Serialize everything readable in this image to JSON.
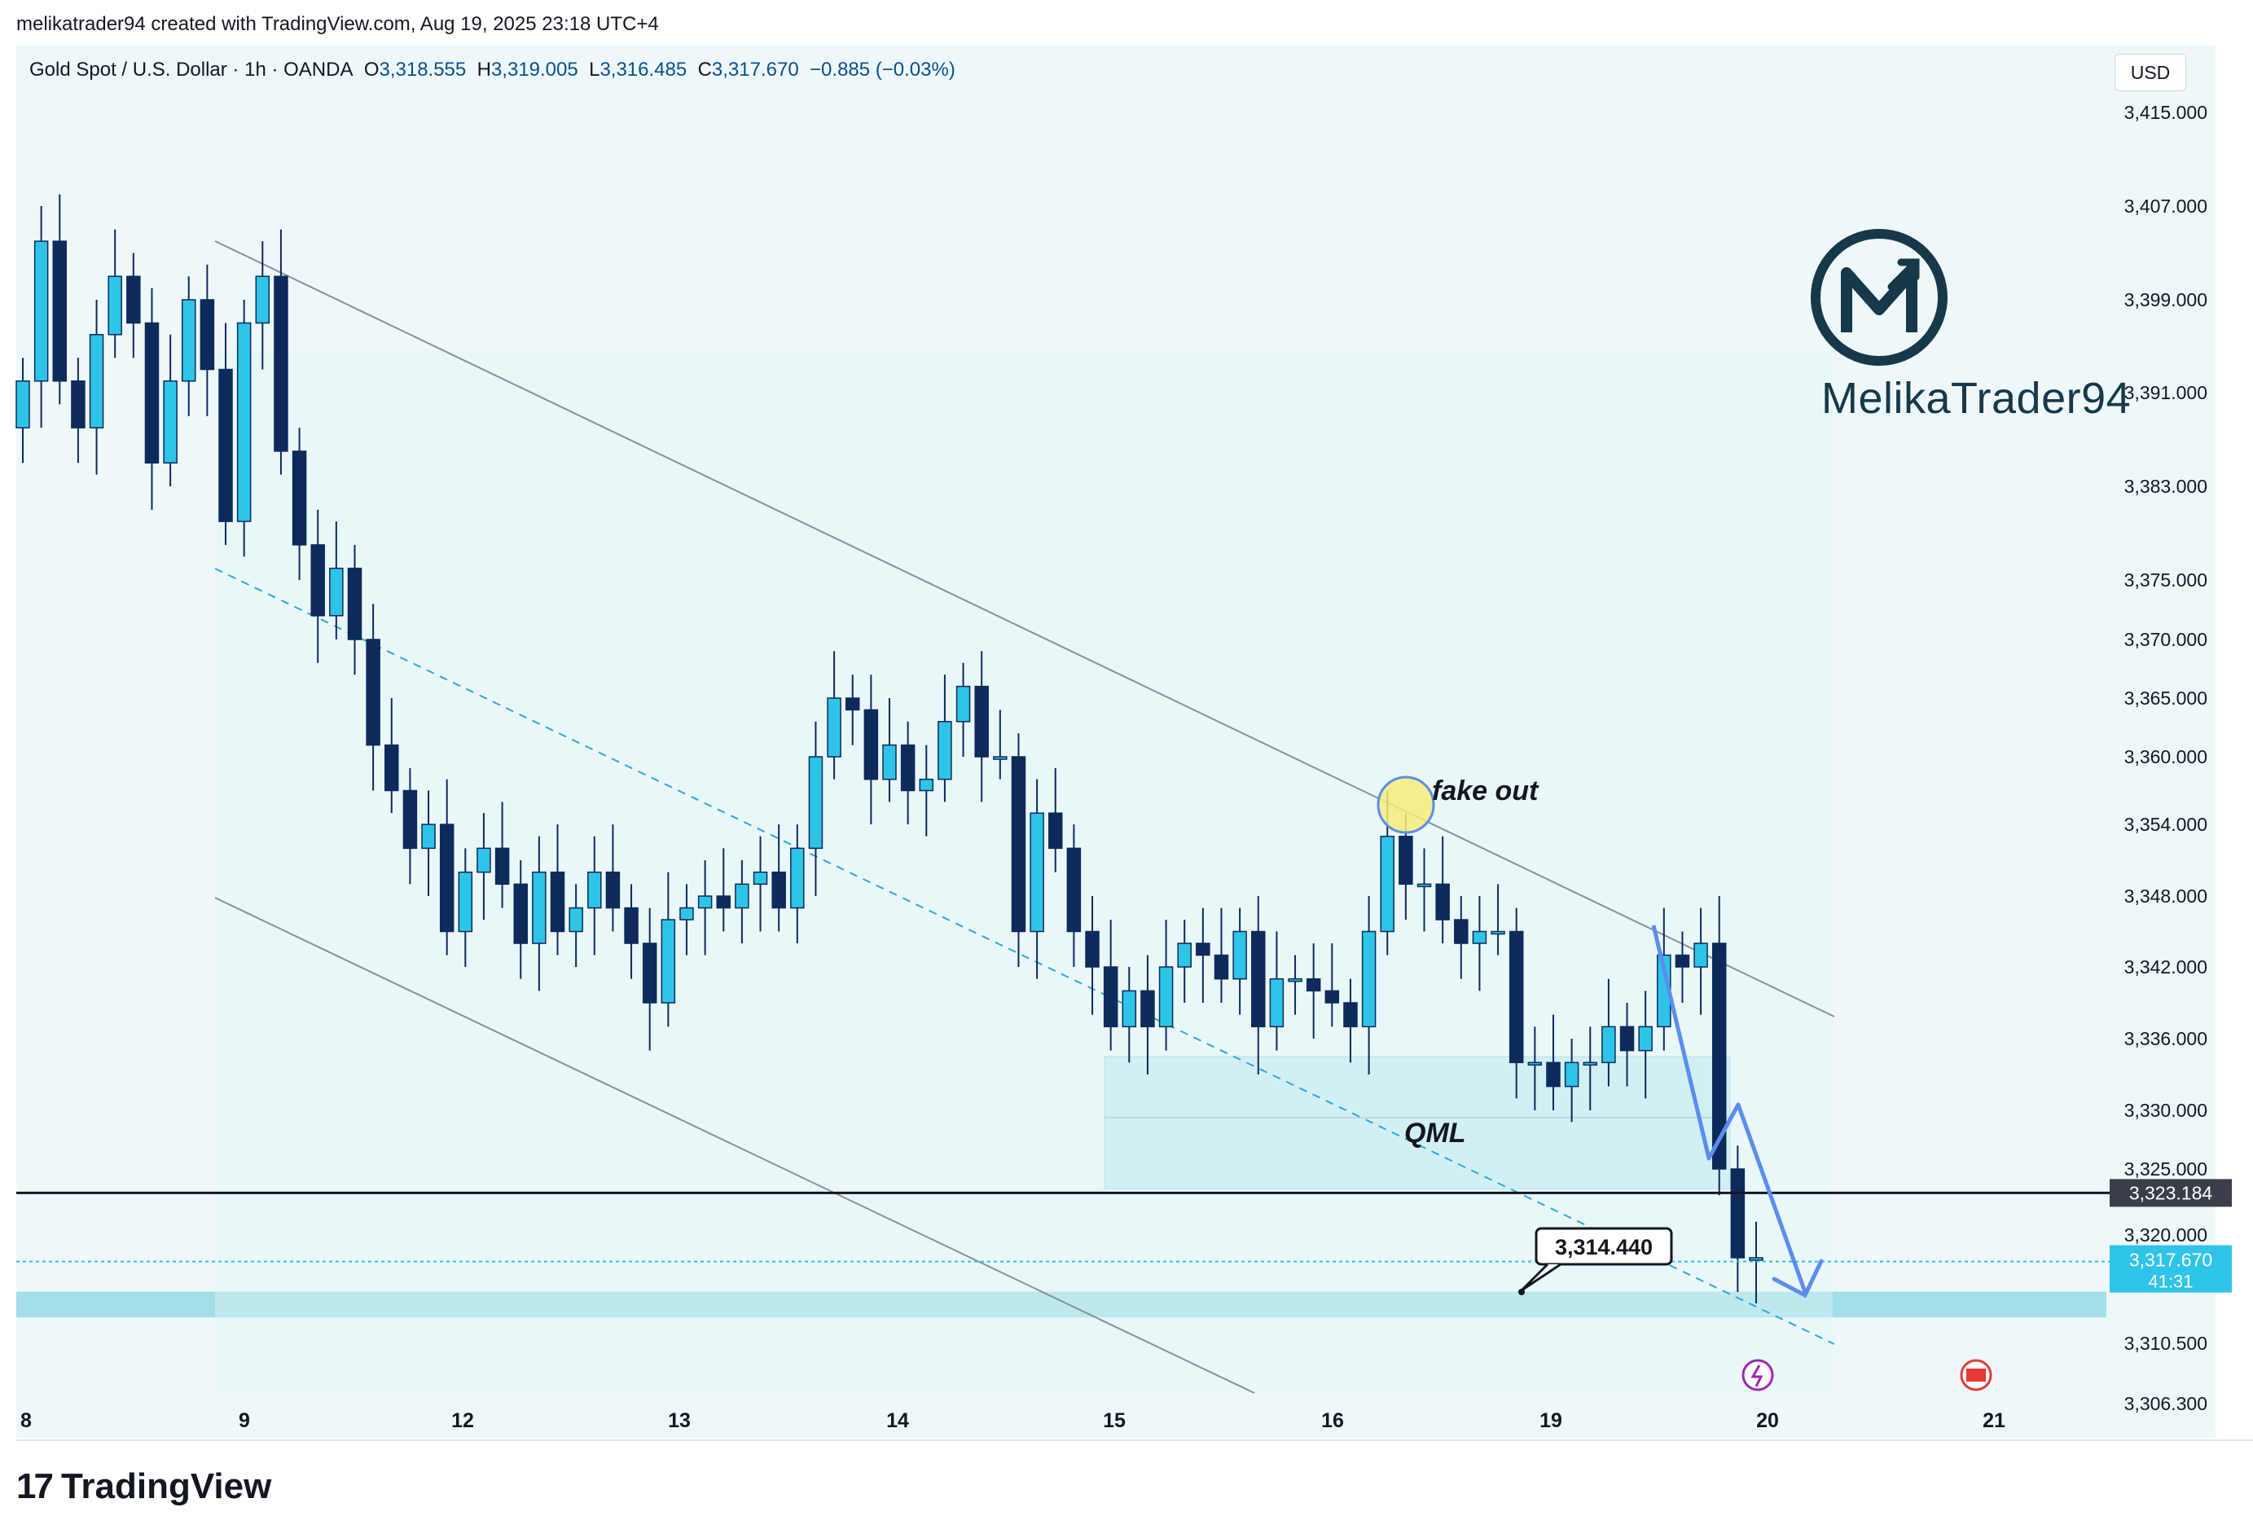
{
  "credit": "melikatrader94 created with TradingView.com, Aug 19, 2025 23:18 UTC+4",
  "legend": {
    "symbol": "Gold Spot / U.S. Dollar · 1h · OANDA",
    "o_label": "O",
    "o": "3,318.555",
    "h_label": "H",
    "h": "3,319.005",
    "l_label": "L",
    "l": "3,316.485",
    "c_label": "C",
    "c": "3,317.670",
    "change": "−0.885 (−0.03%)"
  },
  "currency": "USD",
  "brand": {
    "name": "MelikaTrader94",
    "footer": "TradingView"
  },
  "colors": {
    "up": "#2ec4e8",
    "down": "#0d2a5c",
    "zone": "#b8e8ef",
    "arrow": "#5b8def",
    "level": "#131722"
  },
  "chart_data": {
    "type": "candlestick",
    "title": "",
    "xlabel": "",
    "ylabel": "",
    "x_ticks": [
      "8",
      "9",
      "12",
      "13",
      "14",
      "15",
      "16",
      "19",
      "20",
      "21"
    ],
    "y_ticks": [
      "3,415.000",
      "3,407.000",
      "3,399.000",
      "3,391.000",
      "3,383.000",
      "3,375.000",
      "3,370.000",
      "3,365.000",
      "3,360.000",
      "3,354.000",
      "3,348.000",
      "3,342.000",
      "3,336.000",
      "3,330.000",
      "3,325.000",
      "3,320.000",
      "3,310.500",
      "3,306.300"
    ],
    "last_price": "3,317.670",
    "countdown": "41:31",
    "horizontal_level": "3,323.184",
    "target_label": "3,314.440",
    "annotations": {
      "fakeout": "fake out",
      "qml": "QML"
    },
    "qml_zone": [
      3323.5,
      3334.5
    ],
    "support_zone": [
      3313.2,
      3314.6
    ],
    "closes_approx": [
      3392,
      3404,
      3392,
      3388,
      3396,
      3401,
      3397,
      3385,
      3392,
      3399,
      3393,
      3380,
      3397,
      3401,
      3386,
      3378,
      3372,
      3376,
      3370,
      3361,
      3357,
      3352,
      3354,
      3345,
      3350,
      3352,
      3349,
      3344,
      3350,
      3345,
      3347,
      3350,
      3347,
      3344,
      3339,
      3346,
      3347,
      3348,
      3347,
      3349,
      3350,
      3347,
      3352,
      3360,
      3365,
      3364,
      3358,
      3361,
      3357,
      3358,
      3363,
      3366,
      3360,
      3360,
      3345,
      3355,
      3352,
      3345,
      3342,
      3337,
      3340,
      3337,
      3342,
      3344,
      3343,
      3341,
      3345,
      3337,
      3341,
      3341,
      3340,
      3339,
      3337,
      3345,
      3353,
      3349,
      3349,
      3346,
      3344,
      3345,
      3345,
      3334,
      3334,
      3332,
      3334,
      3334,
      3337,
      3335,
      3337,
      3343,
      3342,
      3344,
      3325,
      3318,
      3318
    ],
    "projection": "down",
    "channel": "descending"
  }
}
